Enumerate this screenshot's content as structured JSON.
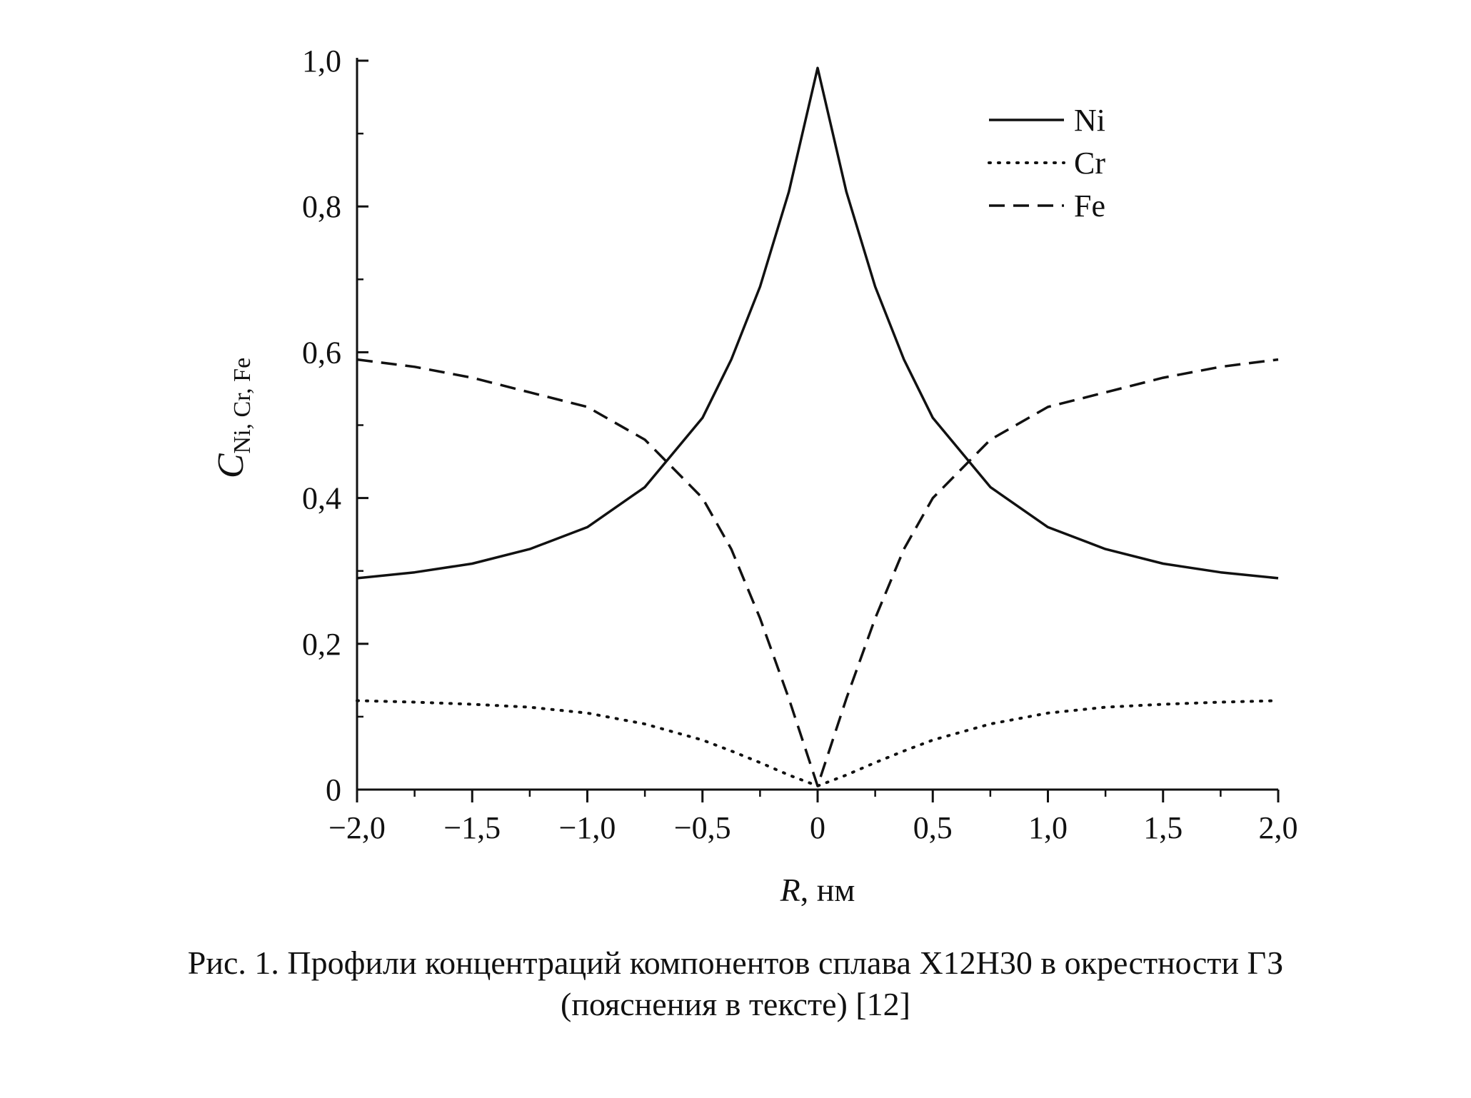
{
  "chart_data": {
    "type": "line",
    "xlabel_italic": "R",
    "xlabel_rest": ", нм",
    "ylabel_main": "C",
    "ylabel_sub": "Ni, Cr, Fe",
    "xlim": [
      -2.0,
      2.0
    ],
    "ylim": [
      0,
      1.0
    ],
    "x_ticks": [
      {
        "value": -2.0,
        "label": "−2,0"
      },
      {
        "value": -1.5,
        "label": "−1,5"
      },
      {
        "value": -1.0,
        "label": "−1,0"
      },
      {
        "value": -0.5,
        "label": "−0,5"
      },
      {
        "value": 0.0,
        "label": "0"
      },
      {
        "value": 0.5,
        "label": "0,5"
      },
      {
        "value": 1.0,
        "label": "1,0"
      },
      {
        "value": 1.5,
        "label": "1,5"
      },
      {
        "value": 2.0,
        "label": "2,0"
      }
    ],
    "y_ticks": [
      {
        "value": 0.0,
        "label": "0"
      },
      {
        "value": 0.2,
        "label": "0,2"
      },
      {
        "value": 0.4,
        "label": "0,4"
      },
      {
        "value": 0.6,
        "label": "0,6"
      },
      {
        "value": 0.8,
        "label": "0,8"
      },
      {
        "value": 1.0,
        "label": "1,0"
      }
    ],
    "legend_position": "top-right",
    "x": [
      -2.0,
      -1.75,
      -1.5,
      -1.25,
      -1.0,
      -0.75,
      -0.5,
      -0.375,
      -0.25,
      -0.125,
      0.0,
      0.125,
      0.25,
      0.375,
      0.5,
      0.75,
      1.0,
      1.25,
      1.5,
      1.75,
      2.0
    ],
    "series": [
      {
        "name": "Ni",
        "style": "solid",
        "values": [
          0.29,
          0.298,
          0.31,
          0.33,
          0.36,
          0.415,
          0.51,
          0.59,
          0.69,
          0.82,
          0.99,
          0.82,
          0.69,
          0.59,
          0.51,
          0.415,
          0.36,
          0.33,
          0.31,
          0.298,
          0.29
        ]
      },
      {
        "name": "Cr",
        "style": "dotted",
        "values": [
          0.122,
          0.12,
          0.117,
          0.113,
          0.105,
          0.09,
          0.068,
          0.053,
          0.037,
          0.02,
          0.005,
          0.02,
          0.037,
          0.053,
          0.068,
          0.09,
          0.105,
          0.113,
          0.117,
          0.12,
          0.122
        ]
      },
      {
        "name": "Fe",
        "style": "dashed",
        "values": [
          0.59,
          0.58,
          0.565,
          0.545,
          0.525,
          0.48,
          0.4,
          0.33,
          0.235,
          0.125,
          0.005,
          0.125,
          0.235,
          0.33,
          0.4,
          0.48,
          0.525,
          0.545,
          0.565,
          0.58,
          0.59
        ]
      }
    ]
  },
  "caption": {
    "line1": "Рис. 1. Профили концентраций компонентов сплава Х12Н30 в окрестности ГЗ",
    "line2": "(пояснения в тексте) [12]"
  }
}
